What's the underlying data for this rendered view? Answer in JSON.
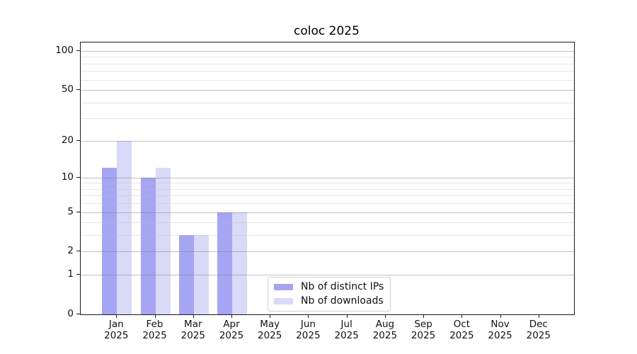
{
  "chart_data": {
    "type": "bar",
    "title": "coloc 2025",
    "months": [
      "Jan",
      "Feb",
      "Mar",
      "Apr",
      "May",
      "Jun",
      "Jul",
      "Aug",
      "Sep",
      "Oct",
      "Nov",
      "Dec"
    ],
    "year": "2025",
    "series": [
      {
        "name": "Nb of distinct IPs",
        "color": "#a5a5f3",
        "values": [
          12,
          10,
          3,
          5,
          0,
          0,
          0,
          0,
          0,
          0,
          0,
          0
        ]
      },
      {
        "name": "Nb of downloads",
        "color": "#d9d9f8",
        "values": [
          20,
          12,
          3,
          5,
          0,
          0,
          0,
          0,
          0,
          0,
          0,
          0
        ]
      }
    ],
    "yscale": "log1p",
    "ylim": [
      0,
      116
    ],
    "y_major_ticks": [
      0,
      1,
      2,
      5,
      10,
      20,
      50,
      100
    ],
    "y_minor_ticks": [
      3,
      4,
      6,
      7,
      8,
      9,
      30,
      40,
      60,
      70,
      80,
      90
    ],
    "grid": "on, drawn above bars",
    "legend_position": "lower center"
  }
}
